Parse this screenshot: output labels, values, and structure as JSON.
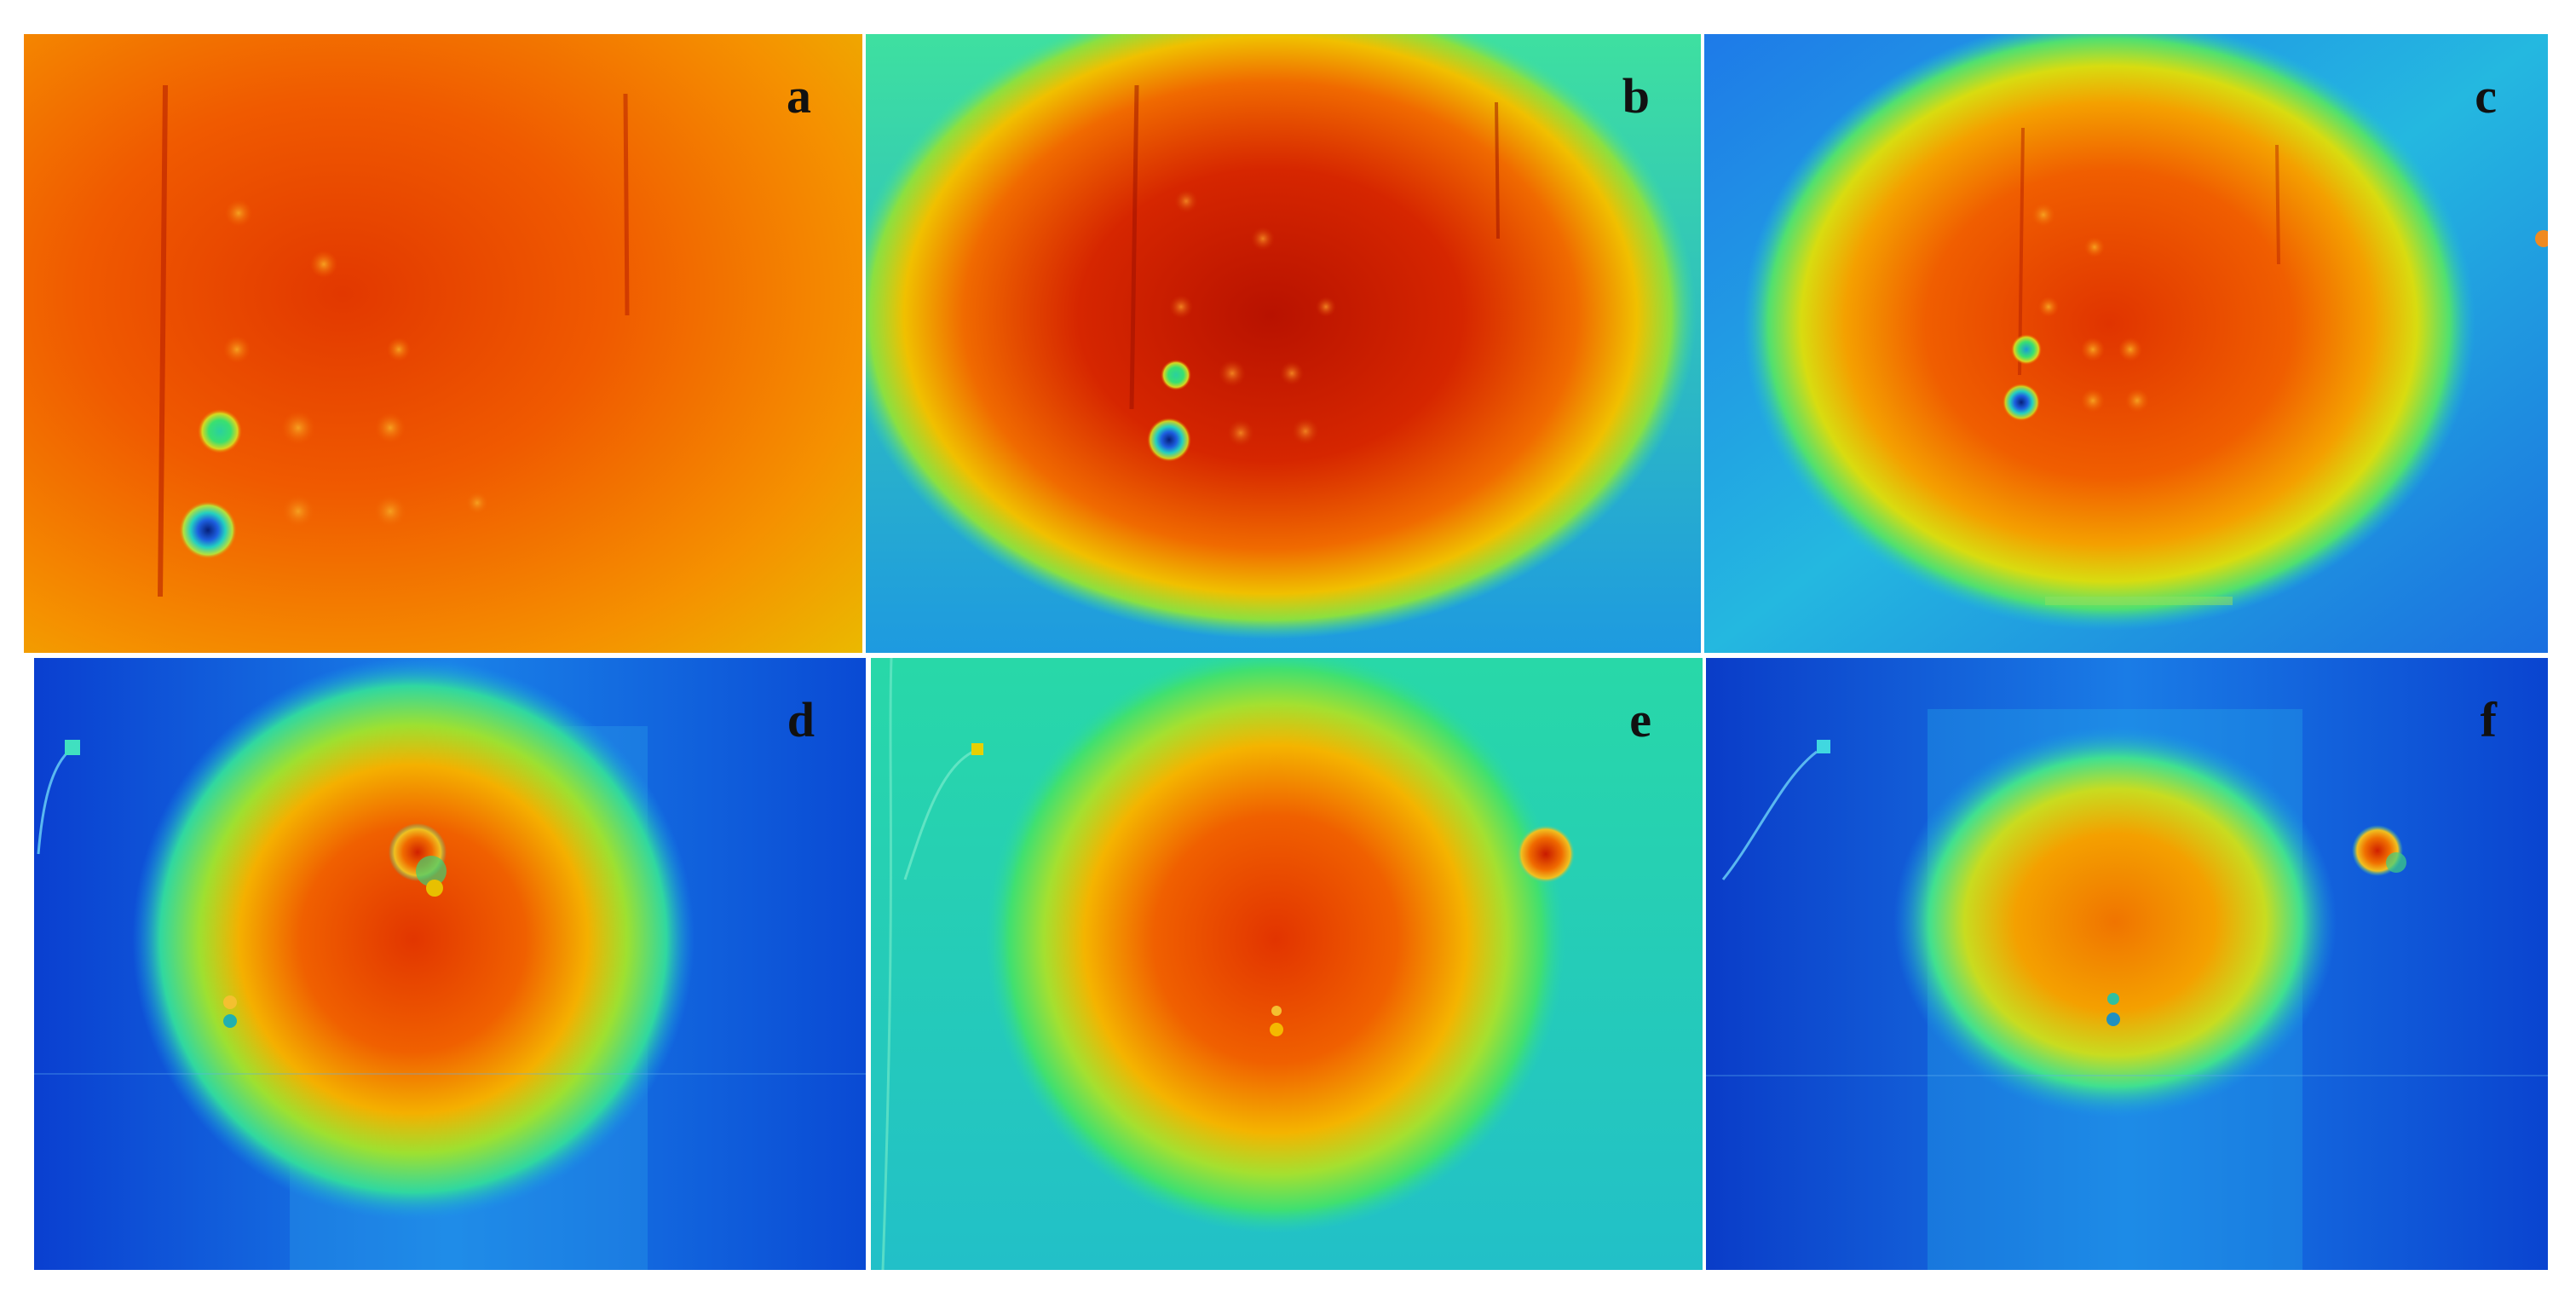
{
  "panels": [
    {
      "id": "a",
      "label": "a"
    },
    {
      "id": "b",
      "label": "b"
    },
    {
      "id": "c",
      "label": "c"
    },
    {
      "id": "d",
      "label": "d"
    },
    {
      "id": "e",
      "label": "e"
    },
    {
      "id": "f",
      "label": "f"
    }
  ],
  "palette": {
    "dark_red": "#b81200",
    "red": "#e63a00",
    "orange": "#f57c00",
    "yellow": "#f0d400",
    "green": "#3ee86a",
    "cyan": "#19d6d0",
    "blue": "#1677e8",
    "deep_blue": "#0a3fd0"
  }
}
